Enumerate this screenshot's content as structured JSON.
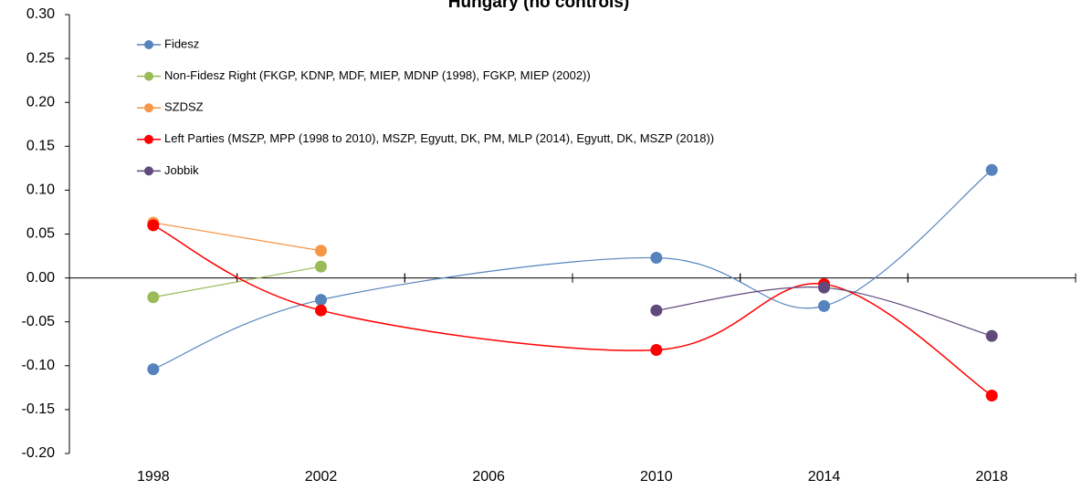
{
  "chart_data": {
    "type": "line",
    "title": "Hungary (no controls)",
    "xlim": [
      1996,
      2020
    ],
    "xticks": [
      1998,
      2002,
      2006,
      2010,
      2014,
      2018
    ],
    "ylim": [
      -0.2,
      0.3
    ],
    "yticks": [
      {
        "value": -0.2,
        "label": "-0.20"
      },
      {
        "value": -0.15,
        "label": "-0.15"
      },
      {
        "value": -0.1,
        "label": "-0.10"
      },
      {
        "value": -0.05,
        "label": "-0.05"
      },
      {
        "value": 0,
        "label": "0.00"
      },
      {
        "value": 0.05,
        "label": "0.05"
      },
      {
        "value": 0.1,
        "label": "0.10"
      },
      {
        "value": 0.15,
        "label": "0.15"
      },
      {
        "value": 0.2,
        "label": "0.20"
      },
      {
        "value": 0.25,
        "label": "0.25"
      },
      {
        "value": 0.3,
        "label": "0.30"
      }
    ],
    "legend": "top-left",
    "smooth": true,
    "series": [
      {
        "name": "Fidesz",
        "color": "#5683be",
        "x": [
          1998,
          2002,
          2010,
          2014,
          2018
        ],
        "values": [
          -0.104,
          -0.025,
          0.023,
          -0.032,
          0.123
        ]
      },
      {
        "name": "Non-Fidesz Right (FKGP, KDNP, MDF, MIEP, MDNP (1998), FGKP, MIEP (2002))",
        "color": "#9bbb59",
        "x": [
          1998,
          2002
        ],
        "values": [
          -0.022,
          0.013
        ]
      },
      {
        "name": "SZDSZ",
        "color": "#f79646",
        "x": [
          1998,
          2002
        ],
        "values": [
          0.063,
          0.031
        ]
      },
      {
        "name": "Left Parties (MSZP, MPP (1998 to 2010), MSZP, Egyutt, DK, PM, MLP (2014), Egyutt, DK, MSZP (2018))",
        "color": "#ff0000",
        "x": [
          1998,
          2002,
          2010,
          2014,
          2018
        ],
        "values": [
          0.06,
          -0.037,
          -0.082,
          -0.007,
          -0.134
        ]
      },
      {
        "name": "Jobbik",
        "color": "#604a7b",
        "x": [
          2010,
          2014,
          2018
        ],
        "values": [
          -0.037,
          -0.011,
          -0.066
        ]
      }
    ]
  }
}
